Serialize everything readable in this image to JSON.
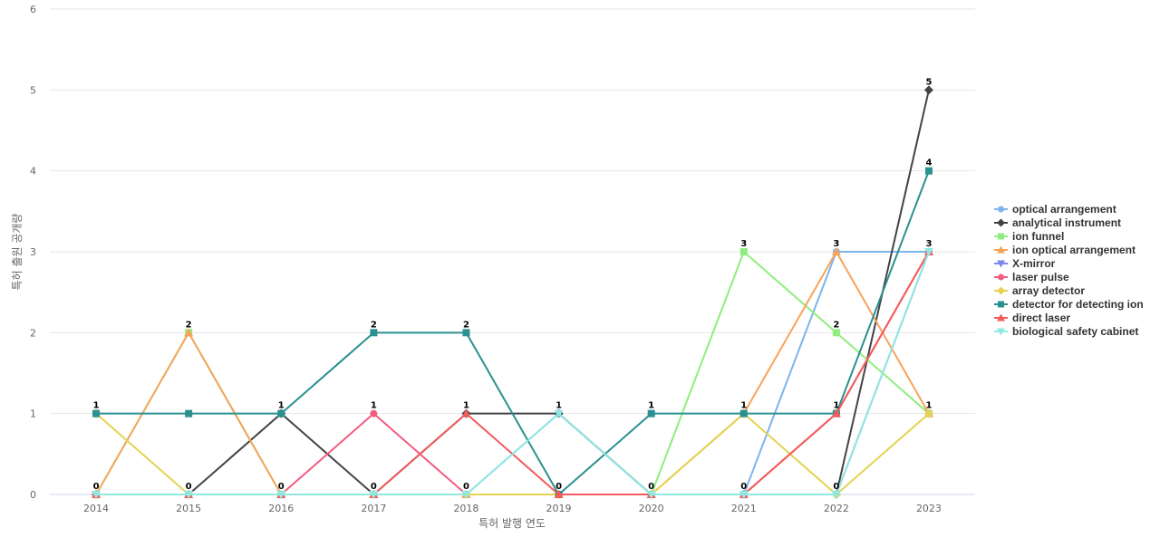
{
  "chart_data": {
    "type": "line",
    "title": "",
    "xlabel": "특허 발행 연도",
    "ylabel": "특허 출원 공개량",
    "x": [
      "2014",
      "2015",
      "2016",
      "2017",
      "2018",
      "2019",
      "2020",
      "2021",
      "2022",
      "2023"
    ],
    "ylim": [
      0,
      6
    ],
    "yticks": [
      0,
      1,
      2,
      3,
      4,
      5,
      6
    ],
    "grid": true,
    "legend": "right",
    "series": [
      {
        "name": "optical arrangement",
        "color": "#7cb5ec",
        "marker": "circle",
        "values": [
          0,
          0,
          0,
          0,
          0,
          1,
          0,
          0,
          3,
          3
        ]
      },
      {
        "name": "analytical instrument",
        "color": "#434348",
        "marker": "diamond",
        "values": [
          0,
          0,
          1,
          0,
          1,
          1,
          0,
          0,
          0,
          5
        ]
      },
      {
        "name": "ion funnel",
        "color": "#90ed7d",
        "marker": "square",
        "values": [
          0,
          2,
          0,
          0,
          0,
          0,
          0,
          3,
          2,
          1
        ]
      },
      {
        "name": "ion optical arrangement",
        "color": "#f7a35c",
        "marker": "triangle",
        "values": [
          0,
          2,
          0,
          0,
          0,
          0,
          0,
          1,
          3,
          1
        ]
      },
      {
        "name": "X-mirror",
        "color": "#8085e9",
        "marker": "triangle-down",
        "values": [
          0,
          0,
          0,
          0,
          0,
          0,
          0,
          0,
          0,
          3
        ]
      },
      {
        "name": "laser pulse",
        "color": "#f15c80",
        "marker": "circle",
        "values": [
          0,
          0,
          0,
          1,
          0,
          0,
          0,
          0,
          1,
          3
        ]
      },
      {
        "name": "array detector",
        "color": "#e4d354",
        "marker": "diamond",
        "values": [
          1,
          0,
          0,
          0,
          0,
          0,
          0,
          1,
          0,
          1
        ]
      },
      {
        "name": "detector for detecting ion",
        "color": "#2b908f",
        "marker": "square",
        "values": [
          1,
          1,
          1,
          2,
          2,
          0,
          1,
          1,
          1,
          4
        ]
      },
      {
        "name": "direct laser",
        "color": "#f45b5b",
        "marker": "triangle",
        "values": [
          0,
          0,
          0,
          0,
          1,
          0,
          0,
          0,
          1,
          3
        ]
      },
      {
        "name": "biological safety cabinet",
        "color": "#91e8e1",
        "marker": "triangle-down",
        "values": [
          0,
          0,
          0,
          0,
          0,
          1,
          0,
          0,
          0,
          3
        ]
      }
    ],
    "data_labels": [
      {
        "x": "2014",
        "values": [
          "1",
          "0"
        ]
      },
      {
        "x": "2015",
        "values": [
          "2",
          "0"
        ]
      },
      {
        "x": "2016",
        "values": [
          "1",
          "0"
        ]
      },
      {
        "x": "2017",
        "values": [
          "2",
          "1",
          "0"
        ]
      },
      {
        "x": "2018",
        "values": [
          "2",
          "1",
          "0"
        ]
      },
      {
        "x": "2019",
        "values": [
          "1",
          "0"
        ]
      },
      {
        "x": "2020",
        "values": [
          "1",
          "0"
        ]
      },
      {
        "x": "2021",
        "values": [
          "3",
          "1",
          "0"
        ]
      },
      {
        "x": "2022",
        "values": [
          "3",
          "2",
          "1",
          "0"
        ]
      },
      {
        "x": "2023",
        "values": [
          "5",
          "4",
          "3",
          "1"
        ]
      }
    ]
  }
}
